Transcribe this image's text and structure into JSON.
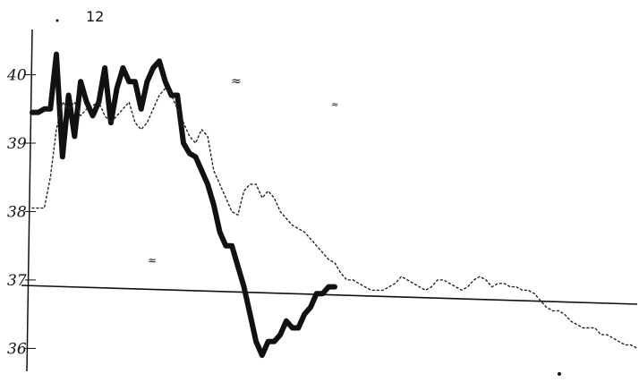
{
  "page": {
    "label": "12"
  },
  "chart_data": {
    "type": "line",
    "title": "",
    "xlabel": "",
    "ylabel": "",
    "y_tick_labels": [
      "40",
      "39",
      "38",
      "37",
      "36"
    ],
    "y_ticks": [
      40,
      39,
      38,
      37,
      36
    ],
    "ylim": [
      35.6,
      40.7
    ],
    "x": [
      0,
      1,
      2,
      3,
      4,
      5,
      6,
      7,
      8,
      9,
      10,
      11,
      12,
      13,
      14,
      15,
      16,
      17,
      18,
      19,
      20,
      21,
      22,
      23,
      24,
      25,
      26,
      27,
      28,
      29,
      30,
      31,
      32,
      33,
      34,
      35,
      36,
      37,
      38,
      39,
      40,
      41,
      42,
      43,
      44,
      45,
      46,
      47,
      48,
      49,
      50,
      51,
      52,
      53,
      54,
      55,
      56,
      57,
      58,
      59,
      60,
      61,
      62,
      63,
      64,
      65,
      66,
      67,
      68,
      69,
      70,
      71,
      72,
      73,
      74,
      75,
      76,
      77,
      78,
      79,
      80,
      81,
      82,
      83,
      84,
      85,
      86,
      87,
      88,
      89,
      90,
      91,
      92,
      93,
      94,
      95,
      96,
      97,
      98,
      99,
      100
    ],
    "reference_line": {
      "y": 37,
      "description": "horizontal line at 37"
    },
    "series": [
      {
        "style": "solid-thick",
        "color": "#111111",
        "values": [
          39.45,
          39.45,
          39.5,
          39.5,
          40.3,
          38.8,
          39.7,
          39.1,
          39.9,
          39.6,
          39.4,
          39.6,
          40.1,
          39.3,
          39.8,
          40.1,
          39.9,
          39.9,
          39.5,
          39.9,
          40.1,
          40.2,
          39.9,
          39.7,
          39.7,
          39.0,
          38.85,
          38.8,
          38.6,
          38.4,
          38.1,
          37.7,
          37.5,
          37.5,
          37.2,
          36.9,
          36.5,
          36.1,
          35.9,
          36.1,
          36.1,
          36.2,
          36.4,
          36.3,
          36.3,
          36.5,
          36.6,
          36.8,
          36.8,
          36.9,
          36.9,
          null,
          null,
          null,
          null,
          null,
          null,
          null,
          null,
          null,
          null,
          null,
          null,
          null,
          null,
          null,
          null,
          null,
          null,
          null,
          null,
          null,
          null,
          null,
          null,
          null,
          null,
          null,
          null,
          null,
          null,
          null,
          null,
          null,
          null,
          null,
          null,
          null,
          null,
          null,
          null,
          null,
          null,
          null,
          null,
          null,
          null,
          null,
          null,
          null,
          null
        ]
      },
      {
        "style": "dotted-thin",
        "color": "#222222",
        "values": [
          38.05,
          38.05,
          38.05,
          38.5,
          39.2,
          39.6,
          39.5,
          39.6,
          39.4,
          39.5,
          39.55,
          39.6,
          39.4,
          39.3,
          39.4,
          39.5,
          39.6,
          39.3,
          39.2,
          39.3,
          39.5,
          39.7,
          39.8,
          39.7,
          39.5,
          39.3,
          39.1,
          39.0,
          39.2,
          39.1,
          38.6,
          38.4,
          38.2,
          38.0,
          37.95,
          38.3,
          38.4,
          38.4,
          38.2,
          38.3,
          38.2,
          38.0,
          37.9,
          37.8,
          37.75,
          37.7,
          37.6,
          37.5,
          37.4,
          37.3,
          37.25,
          37.1,
          37.0,
          37.0,
          36.95,
          36.9,
          36.85,
          36.85,
          36.85,
          36.9,
          36.95,
          37.05,
          37.0,
          36.95,
          36.9,
          36.85,
          36.9,
          37.0,
          37.0,
          36.95,
          36.9,
          36.85,
          36.9,
          37.0,
          37.05,
          37.0,
          36.9,
          36.95,
          36.95,
          36.9,
          36.9,
          36.85,
          36.85,
          36.8,
          36.7,
          36.6,
          36.55,
          36.55,
          36.5,
          36.4,
          36.35,
          36.3,
          36.3,
          36.3,
          36.2,
          36.2,
          36.15,
          36.1,
          36.05,
          36.05,
          36.0
        ]
      }
    ]
  }
}
